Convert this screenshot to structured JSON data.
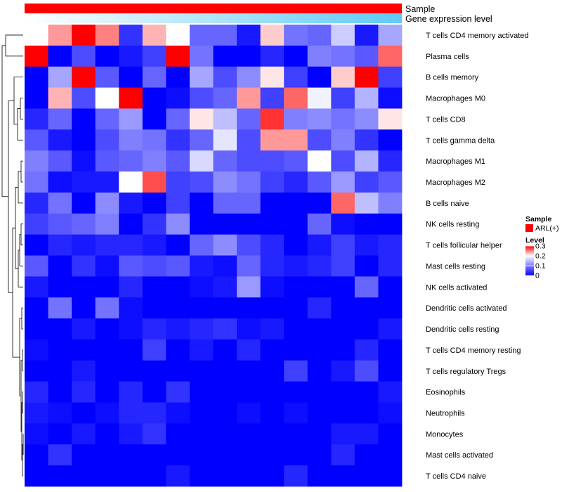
{
  "chart_data": {
    "type": "heatmap",
    "column_annotations": [
      {
        "name": "Sample",
        "color": "#ff0000"
      },
      {
        "name": "Gene expression level",
        "gradient": [
          "#ffffff",
          "#5ecbf5"
        ]
      }
    ],
    "rows": [
      "T cells CD4 memory activated",
      "Plasma cells",
      "B cells memory",
      "Macrophages M0",
      "T cells CD8",
      "T cells gamma delta",
      "Macrophages M1",
      "Macrophages M2",
      "B cells naive",
      "NK cells resting",
      "T cells follicular helper",
      "Mast cells resting",
      "NK cells activated",
      "Dendritic cells activated",
      "Dendritic cells resting",
      "T cells CD4 memory resting",
      "T cells regulatory  Tregs",
      "Eosinophils",
      "Neutrophils",
      "Monocytes",
      "Mast cells activated",
      "T cells CD4 naive"
    ],
    "n_columns": 16,
    "values": [
      [
        0.2,
        0.24,
        0.3,
        0.25,
        0.04,
        0.23,
        0.2,
        0.08,
        0.08,
        0.02,
        0.22,
        0.09,
        0.08,
        0.16,
        0.02,
        0.13
      ],
      [
        0.3,
        0.0,
        0.06,
        0.0,
        0.02,
        0.05,
        0.3,
        0.09,
        0.0,
        0.0,
        0.03,
        0.0,
        0.1,
        0.09,
        0.07,
        0.26
      ],
      [
        0.0,
        0.13,
        0.3,
        0.07,
        0.0,
        0.08,
        0.0,
        0.13,
        0.06,
        0.11,
        0.21,
        0.05,
        0.0,
        0.22,
        0.3,
        0.05
      ],
      [
        0.0,
        0.23,
        0.06,
        0.2,
        0.3,
        0.0,
        0.01,
        0.06,
        0.08,
        0.24,
        0.05,
        0.26,
        0.19,
        0.05,
        0.14,
        0.01
      ],
      [
        0.03,
        0.08,
        0.0,
        0.08,
        0.12,
        0.0,
        0.08,
        0.21,
        0.15,
        0.08,
        0.28,
        0.1,
        0.11,
        0.09,
        0.11,
        0.21
      ],
      [
        0.07,
        0.02,
        0.0,
        0.06,
        0.1,
        0.09,
        0.04,
        0.08,
        0.18,
        0.06,
        0.24,
        0.24,
        0.06,
        0.1,
        0.04,
        0.0
      ],
      [
        0.1,
        0.07,
        0.01,
        0.07,
        0.08,
        0.1,
        0.07,
        0.17,
        0.08,
        0.06,
        0.06,
        0.07,
        0.2,
        0.06,
        0.14,
        0.03
      ],
      [
        0.09,
        0.01,
        0.02,
        0.02,
        0.2,
        0.27,
        0.05,
        0.06,
        0.11,
        0.09,
        0.05,
        0.03,
        0.07,
        0.12,
        0.05,
        0.07
      ],
      [
        0.03,
        0.09,
        0.0,
        0.11,
        0.02,
        0.0,
        0.05,
        0.0,
        0.08,
        0.08,
        0.0,
        0.0,
        0.0,
        0.26,
        0.15,
        0.1
      ],
      [
        0.05,
        0.07,
        0.08,
        0.1,
        0.0,
        0.04,
        0.11,
        0.0,
        0.0,
        0.0,
        0.0,
        0.0,
        0.08,
        0.01,
        0.0,
        0.0
      ],
      [
        0.0,
        0.03,
        0.02,
        0.03,
        0.03,
        0.02,
        0.0,
        0.08,
        0.11,
        0.06,
        0.03,
        0.0,
        0.02,
        0.05,
        0.02,
        0.03
      ],
      [
        0.07,
        0.0,
        0.04,
        0.01,
        0.07,
        0.06,
        0.07,
        0.02,
        0.01,
        0.08,
        0.03,
        0.02,
        0.03,
        0.05,
        0.0,
        0.03
      ],
      [
        0.02,
        0.0,
        0.0,
        0.0,
        0.03,
        0.0,
        0.0,
        0.01,
        0.02,
        0.12,
        0.01,
        0.0,
        0.0,
        0.0,
        0.08,
        0.0
      ],
      [
        0.0,
        0.09,
        0.0,
        0.09,
        0.01,
        0.0,
        0.0,
        0.0,
        0.0,
        0.0,
        0.0,
        0.0,
        0.03,
        0.0,
        0.0,
        0.0
      ],
      [
        0.0,
        0.0,
        0.02,
        0.0,
        0.01,
        0.03,
        0.02,
        0.03,
        0.04,
        0.01,
        0.02,
        0.0,
        0.0,
        0.0,
        0.0,
        0.02
      ],
      [
        0.01,
        0.0,
        0.0,
        0.0,
        0.0,
        0.05,
        0.0,
        0.02,
        0.0,
        0.03,
        0.0,
        0.0,
        0.0,
        0.0,
        0.03,
        0.0
      ],
      [
        0.0,
        0.0,
        0.02,
        0.0,
        0.0,
        0.0,
        0.0,
        0.0,
        0.0,
        0.0,
        0.0,
        0.05,
        0.0,
        0.02,
        0.06,
        0.0
      ],
      [
        0.03,
        0.0,
        0.03,
        0.0,
        0.03,
        0.0,
        0.04,
        0.0,
        0.0,
        0.0,
        0.0,
        0.0,
        0.0,
        0.0,
        0.0,
        0.02
      ],
      [
        0.02,
        0.01,
        0.0,
        0.01,
        0.03,
        0.03,
        0.01,
        0.0,
        0.0,
        0.01,
        0.0,
        0.01,
        0.0,
        0.0,
        0.0,
        0.01
      ],
      [
        0.01,
        0.0,
        0.02,
        0.0,
        0.02,
        0.04,
        0.0,
        0.0,
        0.0,
        0.0,
        0.0,
        0.0,
        0.0,
        0.02,
        0.02,
        0.0
      ],
      [
        0.0,
        0.04,
        0.0,
        0.0,
        0.0,
        0.0,
        0.0,
        0.0,
        0.0,
        0.0,
        0.0,
        0.0,
        0.0,
        0.03,
        0.0,
        0.0
      ],
      [
        0.0,
        0.0,
        0.0,
        0.0,
        0.0,
        0.0,
        0.02,
        0.0,
        0.0,
        0.0,
        0.0,
        0.03,
        0.0,
        0.0,
        0.0,
        0.0
      ]
    ],
    "color_scale": {
      "low": "#0000ff",
      "mid": "#ffffff",
      "high": "#ff0000",
      "min": 0,
      "mid_value": 0.2,
      "max": 0.3
    },
    "legend": {
      "sample_title": "Sample",
      "sample_entry": "ARL(+)",
      "level_title": "Level",
      "level_ticks": [
        "0.3",
        "0.2",
        "0.1",
        "0"
      ]
    }
  }
}
